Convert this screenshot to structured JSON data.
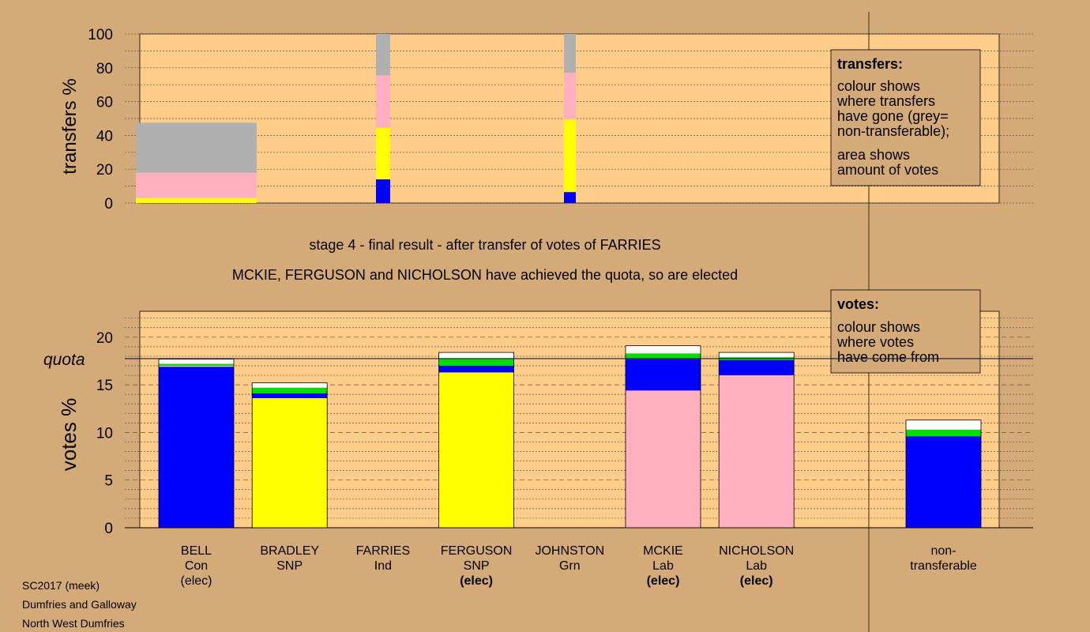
{
  "colors": {
    "background": "#d4aa78",
    "panel": "#ffcc8a",
    "Con": "#0000ff",
    "SNP": "#ffff00",
    "Lab": "#ffb0c0",
    "Grn": "#00dd00",
    "other": "#ffffff",
    "nontransferable": "#b0b0b0"
  },
  "stage": {
    "title": "stage 4 - final result - after transfer of votes of FARRIES",
    "subtitle": "MCKIE, FERGUSON and NICHOLSON have achieved the quota, so are elected"
  },
  "footer": {
    "line1": "SC2017 (meek)",
    "line2": "Dumfries and Galloway",
    "line3": "North West Dumfries"
  },
  "chart_data": [
    {
      "type": "bar",
      "name": "transfers",
      "ylabel": "transfers %",
      "ylim": [
        0,
        100
      ],
      "yticks": [
        0,
        20,
        40,
        60,
        80,
        100
      ],
      "legend": {
        "title": "transfers:",
        "lines": [
          "colour shows",
          "where transfers",
          "have gone (grey=",
          "non-transferable);"
        ],
        "lines2": [
          "area shows",
          "amount of votes"
        ]
      },
      "bars": [
        {
          "candidate": "BELL",
          "segments": [
            {
              "color": "SNP",
              "value": 3
            },
            {
              "color": "Lab",
              "value": 15
            },
            {
              "color": "nontransferable",
              "value": 29.5
            }
          ]
        },
        {
          "candidate": "FARRIES",
          "segments": [
            {
              "color": "Con",
              "value": 14
            },
            {
              "color": "SNP",
              "value": 30.5
            },
            {
              "color": "Lab",
              "value": 31
            },
            {
              "color": "nontransferable",
              "value": 24.5
            }
          ]
        },
        {
          "candidate": "JOHNSTON",
          "segments": [
            {
              "color": "Con",
              "value": 6.5
            },
            {
              "color": "SNP",
              "value": 43
            },
            {
              "color": "Lab",
              "value": 27.5
            },
            {
              "color": "nontransferable",
              "value": 23
            }
          ]
        }
      ]
    },
    {
      "type": "bar",
      "name": "votes",
      "ylabel": "votes %",
      "ylim": [
        0,
        22.5
      ],
      "yticks": [
        0,
        5,
        10,
        15,
        20
      ],
      "quota": 17.75,
      "quota_label": "quota",
      "legend": {
        "title": "votes:",
        "lines": [
          "colour shows",
          "where votes",
          "have come from"
        ]
      },
      "candidates": [
        {
          "name": "BELL",
          "party": "Con",
          "status": "(elec)",
          "status_bold": false,
          "segments": [
            {
              "color": "Con",
              "value": 16.9
            },
            {
              "color": "Lab",
              "value": 0.1
            },
            {
              "color": "Grn",
              "value": 0.2
            },
            {
              "color": "other",
              "value": 0.5
            }
          ]
        },
        {
          "name": "BRADLEY",
          "party": "SNP",
          "status": "",
          "status_bold": false,
          "segments": [
            {
              "color": "SNP",
              "value": 13.6
            },
            {
              "color": "Con",
              "value": 0.5
            },
            {
              "color": "Grn",
              "value": 0.6
            },
            {
              "color": "other",
              "value": 0.5
            }
          ]
        },
        {
          "name": "FARRIES",
          "party": "Ind",
          "status": "",
          "status_bold": false,
          "segments": []
        },
        {
          "name": "FERGUSON",
          "party": "SNP",
          "status": "(elec)",
          "status_bold": true,
          "segments": [
            {
              "color": "SNP",
              "value": 16.3
            },
            {
              "color": "Con",
              "value": 0.7
            },
            {
              "color": "Grn",
              "value": 0.8
            },
            {
              "color": "other",
              "value": 0.6
            }
          ]
        },
        {
          "name": "JOHNSTON",
          "party": "Grn",
          "status": "",
          "status_bold": false,
          "segments": []
        },
        {
          "name": "MCKIE",
          "party": "Lab",
          "status": "(elec)",
          "status_bold": true,
          "segments": [
            {
              "color": "Lab",
              "value": 14.4
            },
            {
              "color": "Con",
              "value": 3.3
            },
            {
              "color": "Grn",
              "value": 0.6
            },
            {
              "color": "other",
              "value": 0.8
            }
          ]
        },
        {
          "name": "NICHOLSON",
          "party": "Lab",
          "status": "(elec)",
          "status_bold": true,
          "segments": [
            {
              "color": "Lab",
              "value": 16.0
            },
            {
              "color": "Con",
              "value": 1.6
            },
            {
              "color": "Grn",
              "value": 0.3
            },
            {
              "color": "other",
              "value": 0.5
            }
          ]
        }
      ],
      "nontransferable": {
        "label1": "non-",
        "label2": "transferable",
        "segments": [
          {
            "color": "Con",
            "value": 9.6
          },
          {
            "color": "Grn",
            "value": 0.7
          },
          {
            "color": "other",
            "value": 1.0
          }
        ]
      }
    }
  ]
}
